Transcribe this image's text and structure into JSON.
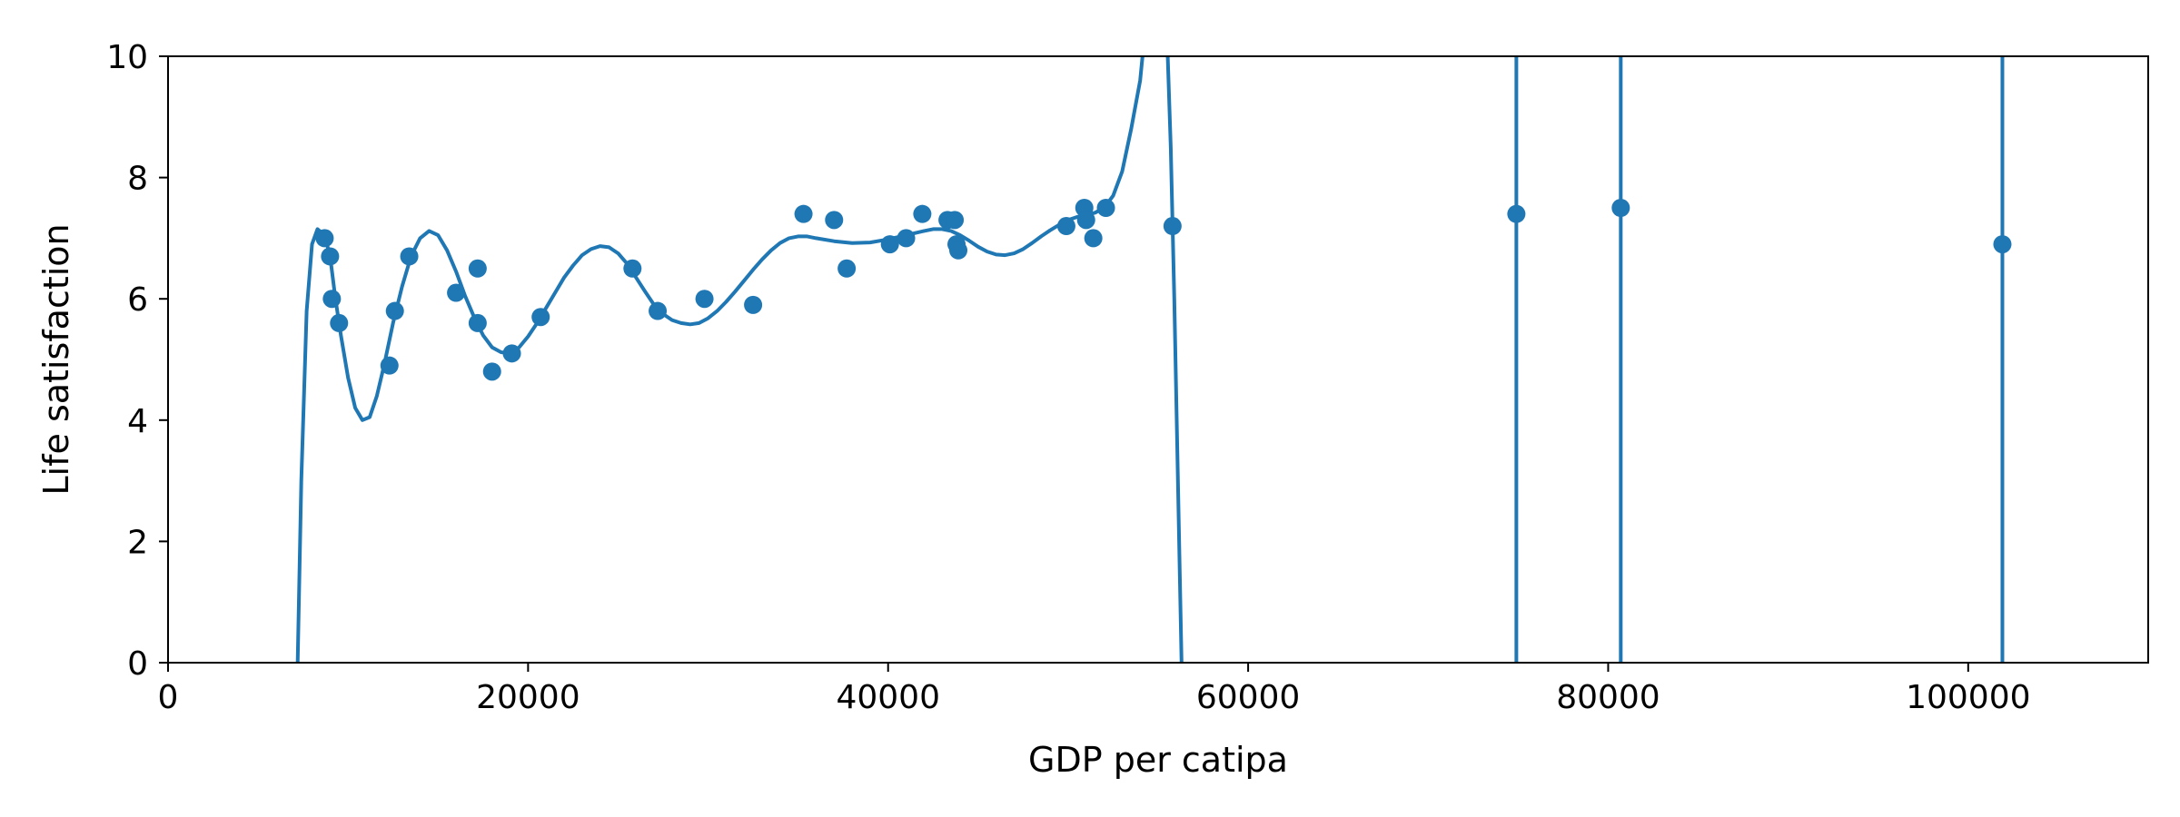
{
  "chart_data": {
    "type": "scatter",
    "title": "",
    "xlabel": "GDP per catipa",
    "ylabel": "Life satisfaction",
    "xlim": [
      0,
      110000
    ],
    "ylim": [
      0,
      10
    ],
    "xticks": [
      0,
      20000,
      40000,
      60000,
      80000,
      100000
    ],
    "yticks": [
      0,
      2,
      4,
      6,
      8,
      10
    ],
    "grid": false,
    "legend": "none",
    "color": "#1f77b4",
    "series": [
      {
        "kind": "scatter",
        "points": [
          [
            8700,
            7.0
          ],
          [
            9000,
            6.7
          ],
          [
            9100,
            6.0
          ],
          [
            9500,
            5.6
          ],
          [
            12300,
            4.9
          ],
          [
            12600,
            5.8
          ],
          [
            13400,
            6.7
          ],
          [
            16000,
            6.1
          ],
          [
            17200,
            5.6
          ],
          [
            17200,
            6.5
          ],
          [
            18000,
            4.8
          ],
          [
            19100,
            5.1
          ],
          [
            20700,
            5.7
          ],
          [
            25800,
            6.5
          ],
          [
            27200,
            5.8
          ],
          [
            29800,
            6.0
          ],
          [
            32500,
            5.9
          ],
          [
            35300,
            7.4
          ],
          [
            37000,
            7.3
          ],
          [
            37700,
            6.5
          ],
          [
            40100,
            6.9
          ],
          [
            41000,
            7.0
          ],
          [
            41900,
            7.4
          ],
          [
            43300,
            7.3
          ],
          [
            43700,
            7.3
          ],
          [
            43800,
            6.9
          ],
          [
            43900,
            6.8
          ],
          [
            49900,
            7.2
          ],
          [
            50900,
            7.5
          ],
          [
            51000,
            7.3
          ],
          [
            51400,
            7.0
          ],
          [
            52100,
            7.5
          ],
          [
            55800,
            7.2
          ],
          [
            74900,
            7.4
          ],
          [
            80700,
            7.5
          ],
          [
            101900,
            6.9
          ]
        ]
      },
      {
        "kind": "line",
        "points": [
          [
            7200,
            0
          ],
          [
            7400,
            3.0
          ],
          [
            7700,
            5.8
          ],
          [
            8000,
            6.9
          ],
          [
            8300,
            7.15
          ],
          [
            8700,
            7.05
          ],
          [
            9000,
            6.7
          ],
          [
            9300,
            6.0
          ],
          [
            9600,
            5.4
          ],
          [
            10000,
            4.7
          ],
          [
            10400,
            4.2
          ],
          [
            10800,
            4.0
          ],
          [
            11200,
            4.05
          ],
          [
            11600,
            4.4
          ],
          [
            12000,
            4.9
          ],
          [
            12500,
            5.6
          ],
          [
            13000,
            6.2
          ],
          [
            13500,
            6.7
          ],
          [
            14000,
            7.0
          ],
          [
            14500,
            7.12
          ],
          [
            15000,
            7.05
          ],
          [
            15500,
            6.8
          ],
          [
            16000,
            6.45
          ],
          [
            16500,
            6.05
          ],
          [
            17000,
            5.7
          ],
          [
            17500,
            5.4
          ],
          [
            18000,
            5.2
          ],
          [
            18500,
            5.12
          ],
          [
            19000,
            5.1
          ],
          [
            19500,
            5.2
          ],
          [
            20000,
            5.38
          ],
          [
            20500,
            5.6
          ],
          [
            21000,
            5.85
          ],
          [
            21500,
            6.1
          ],
          [
            22000,
            6.35
          ],
          [
            22500,
            6.55
          ],
          [
            23000,
            6.72
          ],
          [
            23500,
            6.82
          ],
          [
            24000,
            6.87
          ],
          [
            24500,
            6.85
          ],
          [
            25000,
            6.75
          ],
          [
            25500,
            6.58
          ],
          [
            26000,
            6.35
          ],
          [
            26500,
            6.12
          ],
          [
            27000,
            5.9
          ],
          [
            27500,
            5.75
          ],
          [
            28000,
            5.65
          ],
          [
            28500,
            5.6
          ],
          [
            29000,
            5.58
          ],
          [
            29500,
            5.6
          ],
          [
            30000,
            5.68
          ],
          [
            30500,
            5.8
          ],
          [
            31000,
            5.95
          ],
          [
            31500,
            6.12
          ],
          [
            32000,
            6.3
          ],
          [
            32500,
            6.48
          ],
          [
            33000,
            6.65
          ],
          [
            33500,
            6.8
          ],
          [
            34000,
            6.92
          ],
          [
            34500,
            7.0
          ],
          [
            35000,
            7.03
          ],
          [
            35500,
            7.03
          ],
          [
            36000,
            7.0
          ],
          [
            37000,
            6.95
          ],
          [
            38000,
            6.92
          ],
          [
            39000,
            6.93
          ],
          [
            40000,
            6.98
          ],
          [
            41000,
            7.05
          ],
          [
            42000,
            7.12
          ],
          [
            42500,
            7.15
          ],
          [
            43000,
            7.15
          ],
          [
            43500,
            7.12
          ],
          [
            44000,
            7.05
          ],
          [
            44500,
            6.96
          ],
          [
            45000,
            6.86
          ],
          [
            45500,
            6.78
          ],
          [
            46000,
            6.73
          ],
          [
            46500,
            6.72
          ],
          [
            47000,
            6.75
          ],
          [
            47500,
            6.82
          ],
          [
            48000,
            6.92
          ],
          [
            48500,
            7.03
          ],
          [
            49000,
            7.13
          ],
          [
            49500,
            7.22
          ],
          [
            50000,
            7.3
          ],
          [
            50500,
            7.35
          ],
          [
            51000,
            7.38
          ],
          [
            51500,
            7.42
          ],
          [
            52000,
            7.5
          ],
          [
            52500,
            7.7
          ],
          [
            53000,
            8.1
          ],
          [
            53500,
            8.8
          ],
          [
            54000,
            9.6
          ],
          [
            54300,
            10.5
          ],
          [
            55000,
            11.5
          ],
          [
            55500,
            10.3
          ],
          [
            55700,
            8.5
          ],
          [
            55900,
            6.0
          ],
          [
            56100,
            3.0
          ],
          [
            56300,
            0
          ],
          [
            56400,
            -2
          ]
        ]
      },
      {
        "kind": "vlines",
        "x": [
          74900,
          80700,
          101900
        ]
      }
    ]
  }
}
